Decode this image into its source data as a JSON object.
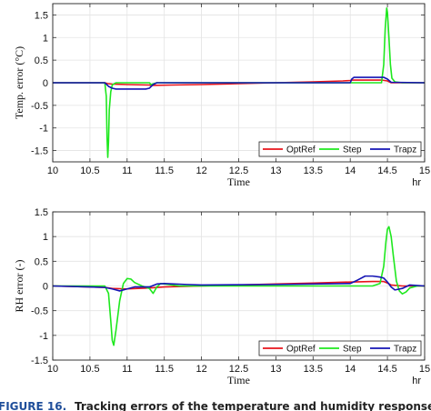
{
  "chart_data": [
    {
      "type": "line",
      "ylabel": "Temp. error (°C)",
      "xlabel": "Time",
      "x_unit": "hr",
      "xlim": [
        10,
        15
      ],
      "ylim": [
        -1.75,
        1.75
      ],
      "xticks": [
        "10",
        "10.5",
        "11",
        "11.5",
        "12",
        "12.5",
        "13",
        "13.5",
        "14",
        "14.5",
        "15"
      ],
      "yticks": [
        "1.5",
        "1",
        "0.5",
        "0",
        "-0.5",
        "-1",
        "-1.5"
      ],
      "grid": true,
      "legend_position": "bottom-right",
      "series": [
        {
          "name": "OptRef",
          "color": "#e8141b",
          "x": [
            10,
            10.7,
            10.74,
            10.8,
            11.0,
            11.3,
            11.32,
            11.6,
            12.0,
            12.5,
            13.0,
            13.5,
            13.9,
            14.0,
            14.02,
            14.3,
            14.42,
            14.5,
            14.55,
            14.7,
            15
          ],
          "y": [
            0,
            0,
            -0.02,
            -0.03,
            -0.04,
            -0.05,
            -0.06,
            -0.05,
            -0.04,
            -0.02,
            0,
            0.02,
            0.04,
            0.05,
            0.06,
            0.06,
            0.06,
            0.04,
            0.0,
            0.0,
            0
          ]
        },
        {
          "name": "Step",
          "color": "#1ee81e",
          "x": [
            10,
            10.7,
            10.72,
            10.73,
            10.74,
            10.75,
            10.76,
            10.78,
            10.8,
            10.85,
            11.3,
            11.32,
            11.4,
            14.0,
            14.42,
            14.45,
            14.47,
            14.49,
            14.5,
            14.52,
            14.54,
            14.56,
            14.6,
            14.7,
            15
          ],
          "y": [
            0,
            0,
            -0.3,
            -1.2,
            -1.65,
            -1.3,
            -0.6,
            -0.2,
            -0.05,
            0,
            0,
            -0.04,
            0,
            0,
            0,
            0.4,
            1.2,
            1.65,
            1.55,
            1.0,
            0.4,
            0.1,
            0.02,
            0,
            0
          ]
        },
        {
          "name": "Trapz",
          "color": "#1414b4",
          "x": [
            10,
            10.7,
            10.75,
            10.8,
            10.85,
            11.25,
            11.3,
            11.35,
            11.4,
            14.0,
            14.02,
            14.05,
            14.4,
            14.45,
            14.5,
            14.55,
            15
          ],
          "y": [
            0,
            0,
            -0.08,
            -0.12,
            -0.14,
            -0.14,
            -0.12,
            -0.04,
            0,
            0,
            0.08,
            0.12,
            0.12,
            0.12,
            0.08,
            0.01,
            0
          ]
        }
      ]
    },
    {
      "type": "line",
      "ylabel": "RH error (-)",
      "xlabel": "Time",
      "x_unit": "hr",
      "xlim": [
        10,
        15
      ],
      "ylim": [
        -1.5,
        1.5
      ],
      "xticks": [
        "10",
        "10.5",
        "11",
        "11.5",
        "12",
        "12.5",
        "13",
        "13.5",
        "14",
        "14.5",
        "15"
      ],
      "yticks": [
        "1.5",
        "1",
        "0.5",
        "0",
        "-0.5",
        "-1",
        "-1.5"
      ],
      "grid": true,
      "legend_position": "bottom-right",
      "series": [
        {
          "name": "OptRef",
          "color": "#e8141b",
          "x": [
            10,
            10.5,
            10.7,
            10.8,
            11.0,
            11.3,
            11.5,
            12.0,
            12.5,
            13.0,
            13.5,
            14.0,
            14.3,
            14.45,
            14.5,
            14.55,
            14.7,
            15
          ],
          "y": [
            0,
            -0.02,
            -0.03,
            -0.05,
            -0.06,
            -0.04,
            -0.02,
            0,
            0.02,
            0.04,
            0.06,
            0.08,
            0.09,
            0.09,
            0.06,
            0.02,
            0.0,
            0
          ]
        },
        {
          "name": "Step",
          "color": "#1ee81e",
          "x": [
            10,
            10.7,
            10.75,
            10.78,
            10.8,
            10.82,
            10.85,
            10.9,
            10.95,
            11.0,
            11.05,
            11.1,
            11.2,
            11.3,
            11.35,
            11.4,
            11.45,
            11.55,
            11.7,
            14.3,
            14.4,
            14.45,
            14.48,
            14.5,
            14.52,
            14.55,
            14.58,
            14.62,
            14.66,
            14.7,
            14.75,
            14.8,
            14.9,
            15
          ],
          "y": [
            0,
            0,
            -0.15,
            -0.7,
            -1.1,
            -1.2,
            -0.9,
            -0.3,
            0.05,
            0.15,
            0.14,
            0.07,
            0.0,
            -0.05,
            -0.15,
            -0.02,
            0.05,
            0.03,
            0,
            0,
            0.05,
            0.4,
            0.9,
            1.15,
            1.2,
            1.0,
            0.6,
            0.1,
            -0.1,
            -0.16,
            -0.12,
            -0.04,
            0,
            0
          ]
        },
        {
          "name": "Trapz",
          "color": "#1414b4",
          "x": [
            10,
            10.5,
            10.7,
            10.8,
            10.9,
            11.0,
            11.1,
            11.3,
            11.4,
            11.5,
            11.8,
            12.0,
            13.0,
            14.0,
            14.1,
            14.2,
            14.3,
            14.4,
            14.45,
            14.5,
            14.55,
            14.6,
            14.7,
            14.8,
            15
          ],
          "y": [
            0,
            -0.02,
            -0.03,
            -0.06,
            -0.1,
            -0.06,
            -0.02,
            -0.02,
            0.04,
            0.05,
            0.03,
            0.02,
            0.03,
            0.05,
            0.12,
            0.2,
            0.2,
            0.18,
            0.16,
            0.08,
            -0.02,
            -0.08,
            -0.05,
            0.02,
            0
          ]
        }
      ]
    }
  ],
  "caption": {
    "label": "FIGURE 16.",
    "text": "Tracking errors of the temperature and humidity responses"
  }
}
